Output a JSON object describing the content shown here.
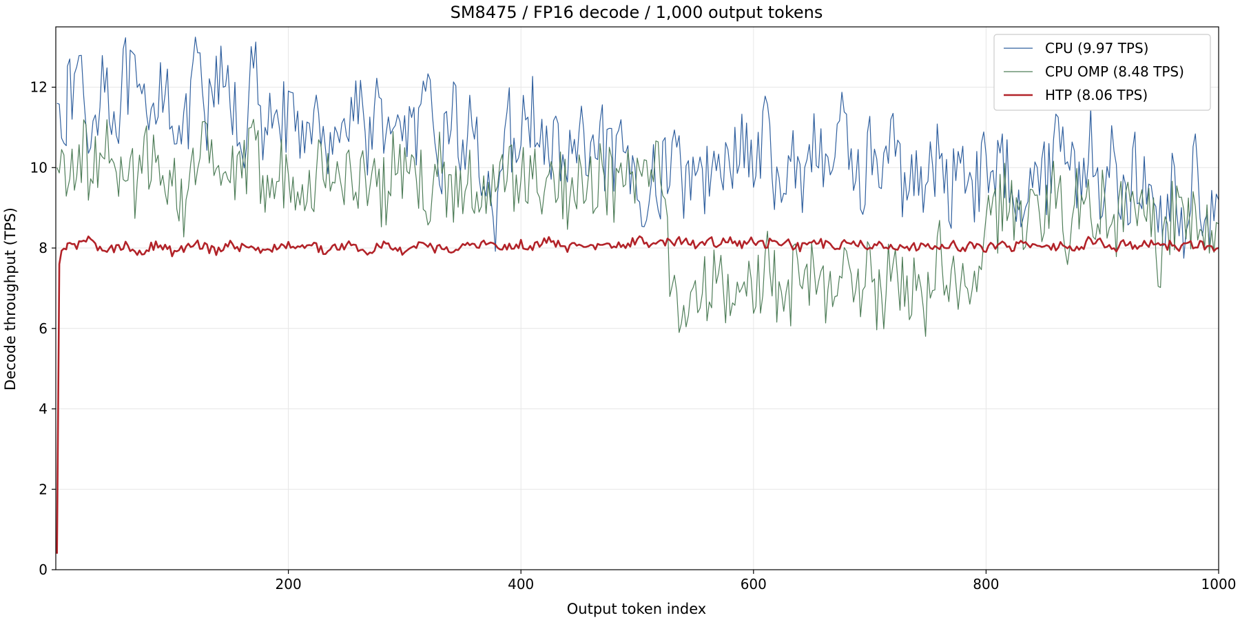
{
  "chart_data": {
    "type": "line",
    "title": "SM8475 / FP16 decode / 1,000 output tokens",
    "xlabel": "Output token index",
    "ylabel": "Decode throughput (TPS)",
    "xlim": [
      0,
      1000
    ],
    "ylim": [
      0,
      13.5
    ],
    "x_ticks": [
      200,
      400,
      600,
      800,
      1000
    ],
    "y_ticks": [
      0,
      2,
      4,
      6,
      8,
      10,
      12
    ],
    "grid": true,
    "legend_position": "top-right",
    "x_sample_step": 10,
    "series": [
      {
        "name": "CPU (9.97 TPS)",
        "color": "#2f5f9e",
        "line_width": 1.2,
        "x": [
          1,
          10,
          20,
          30,
          40,
          50,
          60,
          70,
          80,
          90,
          100,
          110,
          120,
          130,
          140,
          150,
          160,
          170,
          180,
          190,
          200,
          210,
          220,
          230,
          240,
          250,
          260,
          270,
          280,
          290,
          300,
          310,
          320,
          330,
          340,
          350,
          360,
          370,
          380,
          390,
          400,
          410,
          420,
          430,
          440,
          450,
          460,
          470,
          480,
          490,
          500,
          510,
          520,
          530,
          540,
          550,
          560,
          570,
          580,
          590,
          600,
          610,
          620,
          630,
          640,
          650,
          660,
          670,
          680,
          690,
          700,
          710,
          720,
          730,
          740,
          750,
          760,
          770,
          780,
          790,
          800,
          810,
          820,
          830,
          840,
          850,
          860,
          870,
          880,
          890,
          900,
          910,
          920,
          930,
          940,
          950,
          960,
          970,
          980,
          990,
          1000
        ],
        "values": [
          11.6,
          11.5,
          12.6,
          10.5,
          12.7,
          11.2,
          12.2,
          11.8,
          10.6,
          12.4,
          11.7,
          10.4,
          12.5,
          11.0,
          12.2,
          11.8,
          10.5,
          12.6,
          10.2,
          11.9,
          11.0,
          10.6,
          11.6,
          10.2,
          11.4,
          10.8,
          11.9,
          10.6,
          11.7,
          10.2,
          11.3,
          10.6,
          11.5,
          10.0,
          11.6,
          10.4,
          11.2,
          9.6,
          8.4,
          11.0,
          10.6,
          11.7,
          10.0,
          10.7,
          9.9,
          10.9,
          9.6,
          10.6,
          9.8,
          10.4,
          9.2,
          9.8,
          9.4,
          10.8,
          9.4,
          10.4,
          9.6,
          11.0,
          9.6,
          10.8,
          9.8,
          11.0,
          9.2,
          10.5,
          9.6,
          10.8,
          9.8,
          10.6,
          11.2,
          9.5,
          10.4,
          9.8,
          10.6,
          9.4,
          10.3,
          9.6,
          10.2,
          9.4,
          10.4,
          9.6,
          10.2,
          9.8,
          10.0,
          9.4,
          10.3,
          9.6,
          10.8,
          10.6,
          9.6,
          10.7,
          9.4,
          10.2,
          9.2,
          10.0,
          9.0,
          8.6,
          9.6,
          8.6,
          9.8,
          9.0,
          9.2
        ]
      },
      {
        "name": "CPU OMP (8.48 TPS)",
        "color": "#4e7d58",
        "line_width": 1.2,
        "x": [
          1,
          10,
          20,
          30,
          40,
          50,
          60,
          70,
          80,
          90,
          100,
          110,
          120,
          130,
          140,
          150,
          160,
          170,
          180,
          190,
          200,
          210,
          220,
          230,
          240,
          250,
          260,
          270,
          280,
          290,
          300,
          310,
          320,
          330,
          340,
          350,
          360,
          370,
          380,
          390,
          400,
          410,
          420,
          430,
          440,
          450,
          460,
          470,
          480,
          490,
          500,
          510,
          520,
          530,
          540,
          550,
          560,
          570,
          580,
          590,
          600,
          610,
          620,
          630,
          640,
          650,
          660,
          670,
          680,
          690,
          700,
          710,
          720,
          730,
          740,
          750,
          760,
          770,
          780,
          790,
          800,
          810,
          820,
          830,
          840,
          850,
          860,
          870,
          880,
          890,
          900,
          910,
          920,
          930,
          940,
          950,
          960,
          970,
          980,
          990,
          1000
        ],
        "values": [
          10.0,
          9.4,
          10.6,
          9.8,
          10.8,
          9.6,
          10.2,
          9.2,
          10.4,
          9.8,
          10.0,
          9.2,
          9.8,
          10.6,
          9.4,
          10.0,
          9.6,
          10.4,
          9.8,
          10.2,
          9.6,
          10.0,
          9.4,
          10.2,
          9.6,
          9.9,
          9.4,
          10.1,
          9.2,
          10.0,
          9.6,
          9.8,
          9.4,
          10.0,
          9.2,
          9.8,
          9.6,
          9.0,
          9.4,
          10.0,
          9.6,
          9.8,
          9.2,
          9.8,
          9.4,
          10.0,
          9.6,
          9.8,
          9.4,
          10.0,
          9.4,
          10.2,
          9.6,
          7.0,
          6.2,
          7.4,
          6.8,
          8.0,
          6.4,
          7.6,
          6.6,
          7.8,
          7.0,
          6.6,
          8.0,
          7.2,
          6.8,
          7.6,
          7.2,
          6.6,
          7.4,
          6.4,
          7.8,
          6.8,
          7.2,
          6.6,
          7.8,
          6.8,
          7.4,
          6.6,
          8.4,
          8.8,
          9.4,
          8.6,
          9.2,
          8.8,
          9.6,
          8.4,
          9.2,
          8.8,
          9.4,
          8.6,
          9.0,
          8.4,
          9.2,
          7.6,
          8.8,
          8.4,
          9.0,
          8.2,
          8.6
        ]
      },
      {
        "name": "HTP (8.06 TPS)",
        "color": "#b22228",
        "line_width": 2.6,
        "x": [
          1,
          3,
          5,
          10,
          20,
          30,
          40,
          50,
          60,
          70,
          80,
          90,
          100,
          110,
          120,
          130,
          140,
          150,
          160,
          170,
          180,
          190,
          200,
          210,
          220,
          230,
          240,
          250,
          260,
          270,
          280,
          290,
          300,
          310,
          320,
          330,
          340,
          350,
          360,
          370,
          380,
          390,
          400,
          410,
          420,
          430,
          440,
          450,
          460,
          470,
          480,
          490,
          500,
          510,
          520,
          530,
          540,
          550,
          560,
          570,
          580,
          590,
          600,
          610,
          620,
          630,
          640,
          650,
          660,
          670,
          680,
          690,
          700,
          710,
          720,
          730,
          740,
          750,
          760,
          770,
          780,
          790,
          800,
          810,
          820,
          830,
          840,
          850,
          860,
          870,
          880,
          890,
          900,
          910,
          920,
          930,
          940,
          950,
          960,
          970,
          980,
          990,
          1000
        ],
        "values": [
          0.4,
          7.6,
          7.9,
          8.0,
          8.1,
          8.3,
          7.9,
          8.0,
          8.1,
          7.9,
          8.0,
          8.1,
          7.9,
          8.0,
          8.1,
          8.0,
          7.9,
          8.1,
          8.0,
          8.1,
          7.9,
          8.0,
          8.1,
          8.0,
          8.1,
          7.9,
          8.0,
          8.1,
          8.0,
          7.9,
          8.1,
          8.0,
          7.9,
          8.1,
          8.0,
          8.0,
          7.9,
          8.1,
          8.0,
          8.2,
          8.1,
          8.0,
          8.1,
          8.0,
          8.2,
          8.1,
          8.0,
          8.1,
          8.0,
          8.1,
          8.0,
          8.1,
          8.2,
          8.1,
          8.2,
          8.1,
          8.2,
          8.1,
          8.2,
          8.1,
          8.2,
          8.1,
          8.2,
          8.1,
          8.2,
          8.1,
          8.0,
          8.2,
          8.1,
          8.0,
          8.2,
          8.1,
          8.0,
          8.1,
          8.0,
          8.1,
          8.0,
          8.1,
          8.0,
          8.1,
          8.0,
          8.1,
          8.0,
          8.1,
          8.0,
          8.1,
          8.0,
          8.1,
          8.0,
          8.1,
          8.0,
          8.2,
          8.1,
          8.0,
          8.1,
          8.0,
          8.1,
          8.0,
          8.1,
          8.0,
          8.1,
          8.0,
          8.0
        ]
      }
    ]
  }
}
